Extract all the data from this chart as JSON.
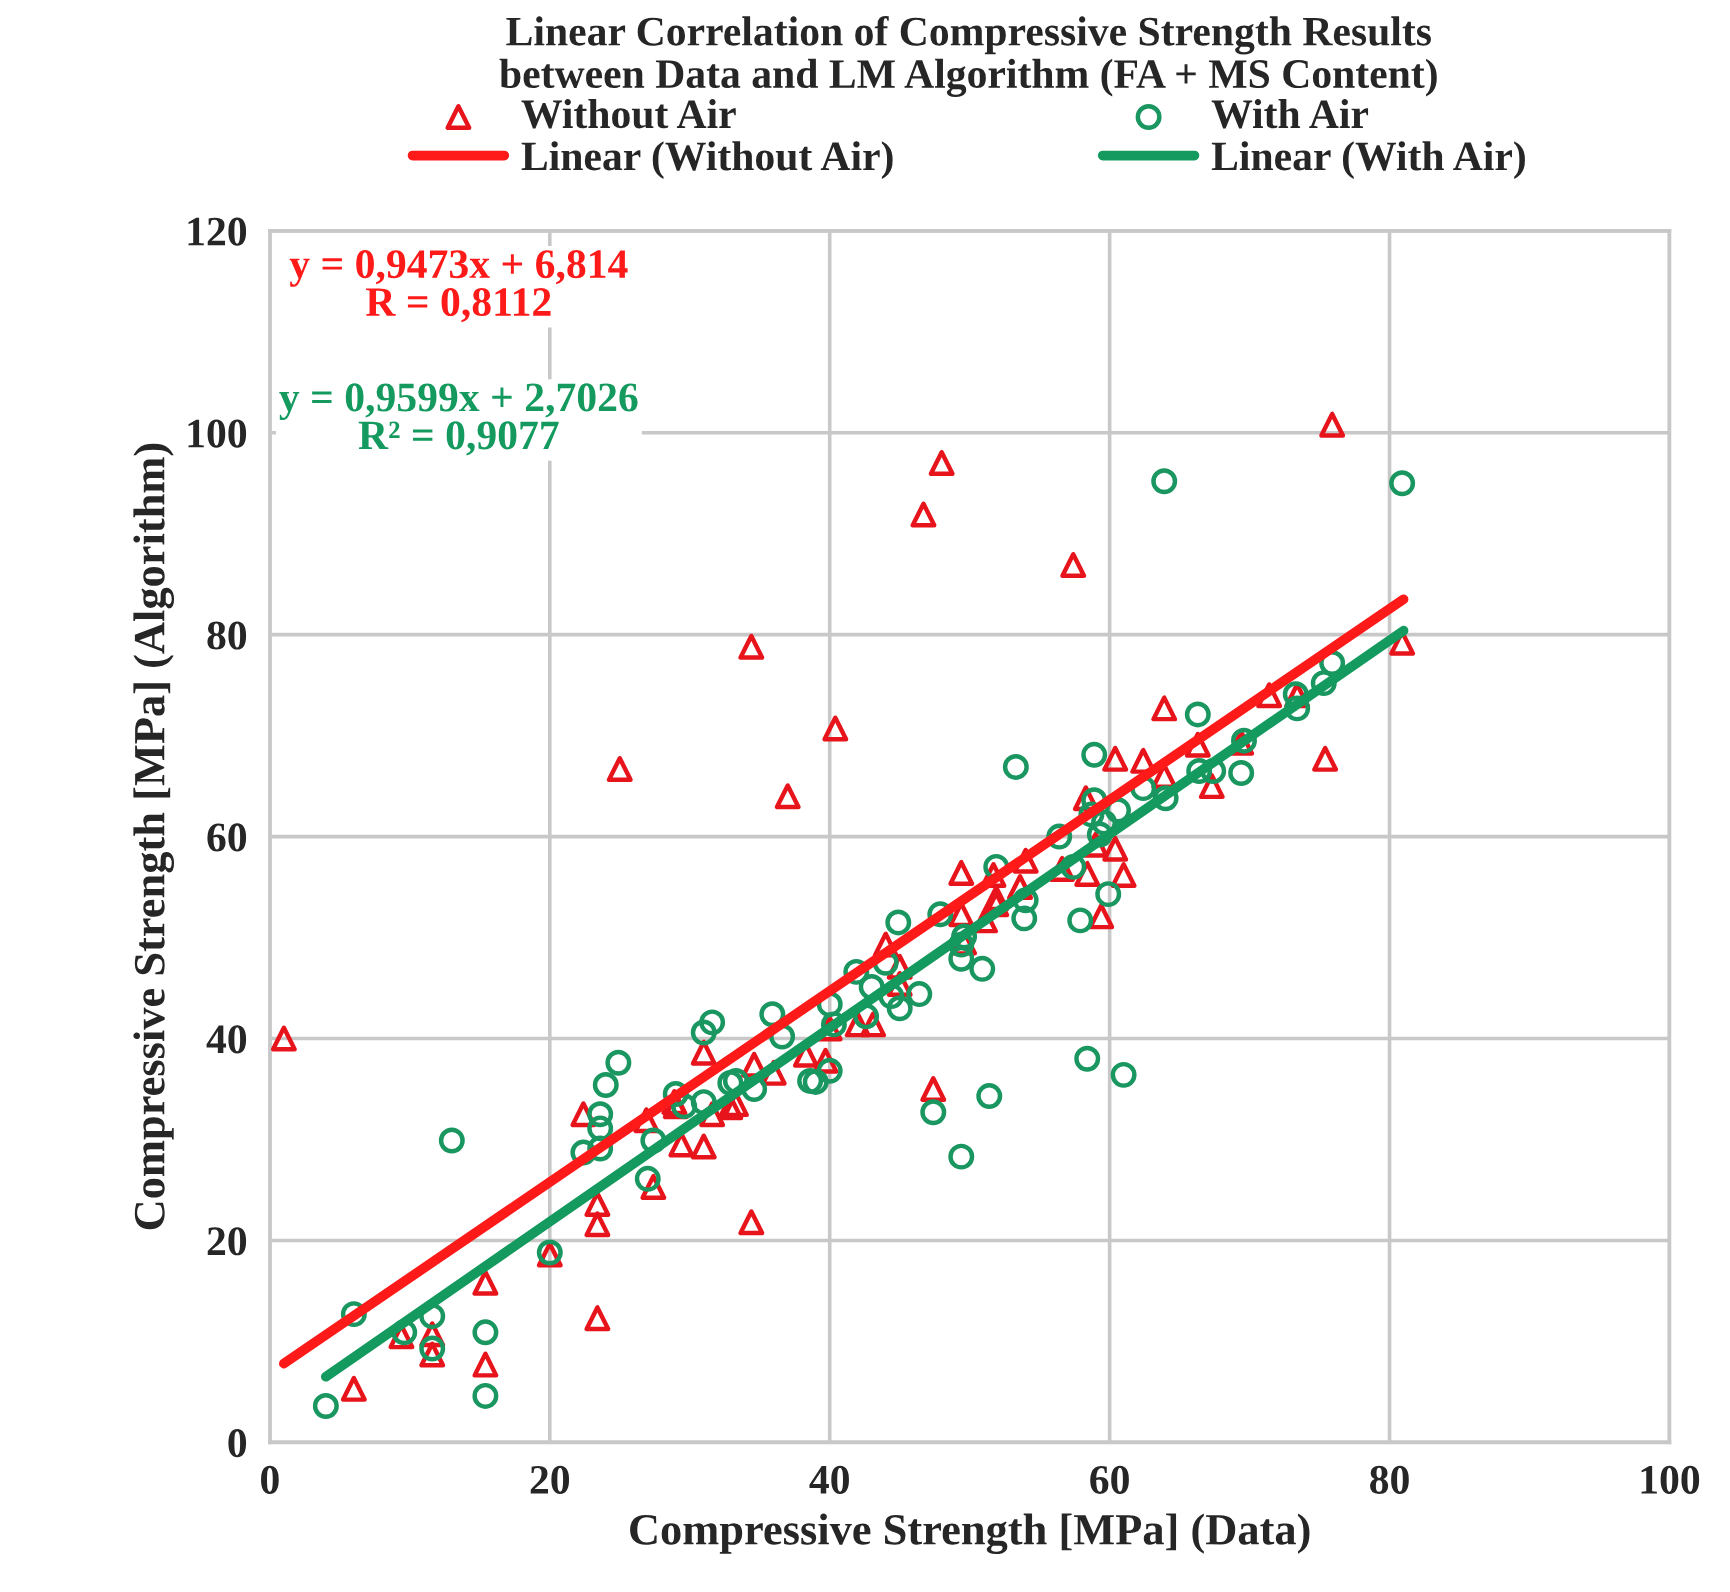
{
  "chart_data": {
    "type": "scatter",
    "title": "Linear Correlation of Compressive Strength Results\nbetween Data and LM Algorithm (FA + MS Content)",
    "xlabel": "Compressive Strength [MPa] (Data)",
    "ylabel": "Compressive Strength [MPa] (Algorithm)",
    "xlim": [
      0,
      100
    ],
    "xticks": [
      0,
      20,
      40,
      60,
      80,
      100
    ],
    "ylim": [
      0,
      120
    ],
    "yticks": [
      0,
      20,
      40,
      60,
      80,
      100,
      120
    ],
    "grid": true,
    "legend": "top",
    "annotations": [
      "y = 0,9473x + 6,814\nR = 0,8112",
      "y = 0,9599x + 2,7026\nR² = 0,9077"
    ],
    "series": [
      {
        "name": "Without Air",
        "marker": "triangle",
        "color": "#e8141c",
        "x": [
          1.0,
          6.0,
          9.4,
          11.6,
          11.6,
          15.4,
          15.4,
          20.0,
          23.4,
          23.4,
          23.4,
          22.4,
          27.4,
          26.9,
          29.4,
          31.0,
          31.0,
          28.9,
          25.0,
          34.4,
          40.4,
          37.0,
          49.4,
          47.4,
          34.4,
          44.0,
          45.0,
          45.0,
          43.1,
          42.0,
          40.0,
          38.3,
          39.7,
          36.0,
          34.6,
          33.3,
          32.9,
          31.6,
          29.0,
          49.4,
          51.1,
          51.9,
          53.6,
          54.0,
          48.0,
          46.7,
          57.4,
          75.9,
          80.9,
          63.9,
          75.4,
          60.4,
          62.4,
          63.9,
          66.3,
          67.3,
          69.4,
          71.4,
          73.4,
          58.3,
          59.0,
          60.4,
          61.0,
          58.4,
          59.4,
          56.6,
          51.7,
          51.9,
          49.6
        ],
        "values": [
          40.0,
          5.3,
          10.5,
          10.7,
          8.7,
          15.8,
          7.7,
          18.6,
          12.3,
          23.6,
          21.6,
          32.5,
          25.3,
          31.9,
          29.5,
          29.3,
          38.6,
          33.7,
          66.7,
          78.8,
          70.7,
          64.0,
          56.4,
          35.0,
          21.8,
          49.3,
          47.1,
          45.4,
          41.4,
          41.4,
          41.0,
          38.4,
          37.8,
          36.6,
          37.4,
          33.5,
          33.2,
          32.5,
          33.3,
          52.3,
          51.7,
          53.3,
          55.0,
          57.6,
          97.0,
          91.9,
          86.9,
          100.8,
          79.2,
          72.7,
          67.7,
          67.7,
          67.5,
          66.0,
          69.1,
          65.0,
          69.3,
          74.0,
          74.0,
          63.8,
          59.2,
          58.8,
          56.2,
          56.3,
          52.1,
          56.8,
          56.2,
          53.9,
          49.5
        ]
      },
      {
        "name": "With Air",
        "marker": "circle",
        "color": "#1a9660",
        "x": [
          4.0,
          6.0,
          9.6,
          11.6,
          11.6,
          15.4,
          15.4,
          13.0,
          20.0,
          22.4,
          23.6,
          23.6,
          23.6,
          24.0,
          24.9,
          27.0,
          27.4,
          29.0,
          29.6,
          31.0,
          31.0,
          31.6,
          32.9,
          33.3,
          34.6,
          35.9,
          36.6,
          38.6,
          39.0,
          40.0,
          40.0,
          40.3,
          41.9,
          42.6,
          43.0,
          44.0,
          44.9,
          45.0,
          44.4,
          46.4,
          47.9,
          47.4,
          49.4,
          51.4,
          53.3,
          49.4,
          50.9,
          49.4,
          49.6,
          51.9,
          54.0,
          53.9,
          63.9,
          80.9,
          58.9,
          66.3,
          62.4,
          64.0,
          66.4,
          67.4,
          69.4,
          69.6,
          73.4,
          73.3,
          75.3,
          75.9,
          58.9,
          58.7,
          59.6,
          60.6,
          59.3,
          56.4,
          57.4,
          59.9,
          57.9,
          58.4,
          61.0
        ],
        "values": [
          3.6,
          12.7,
          10.9,
          12.5,
          9.3,
          10.9,
          4.6,
          29.9,
          18.8,
          28.7,
          32.5,
          31.1,
          29.1,
          35.4,
          37.6,
          26.1,
          29.9,
          34.5,
          33.3,
          33.7,
          40.6,
          41.6,
          35.6,
          35.8,
          35.0,
          42.4,
          40.2,
          35.8,
          35.7,
          36.8,
          43.4,
          41.4,
          46.6,
          42.2,
          45.1,
          47.5,
          51.5,
          43.0,
          44.2,
          44.4,
          52.3,
          32.7,
          28.3,
          34.3,
          66.9,
          47.9,
          46.9,
          49.3,
          50.1,
          57.0,
          53.7,
          51.9,
          95.2,
          95.0,
          68.1,
          72.1,
          64.8,
          63.8,
          66.5,
          66.5,
          66.3,
          69.5,
          72.7,
          74.1,
          75.2,
          77.2,
          63.6,
          62.2,
          61.4,
          62.6,
          60.2,
          60.0,
          57.0,
          54.3,
          51.7,
          38.0,
          36.4
        ]
      },
      {
        "name": "Linear (Without Air)",
        "type": "line",
        "marker": "none",
        "line_style": "solid",
        "color": "#ff1a1a",
        "x": [
          1,
          81
        ],
        "values": [
          7.8,
          83.5
        ]
      },
      {
        "name": "Linear (With Air)",
        "type": "line",
        "marker": "none",
        "line_style": "solid",
        "color": "#149a5e",
        "x": [
          4,
          81
        ],
        "values": [
          6.5,
          80.4
        ]
      }
    ]
  }
}
